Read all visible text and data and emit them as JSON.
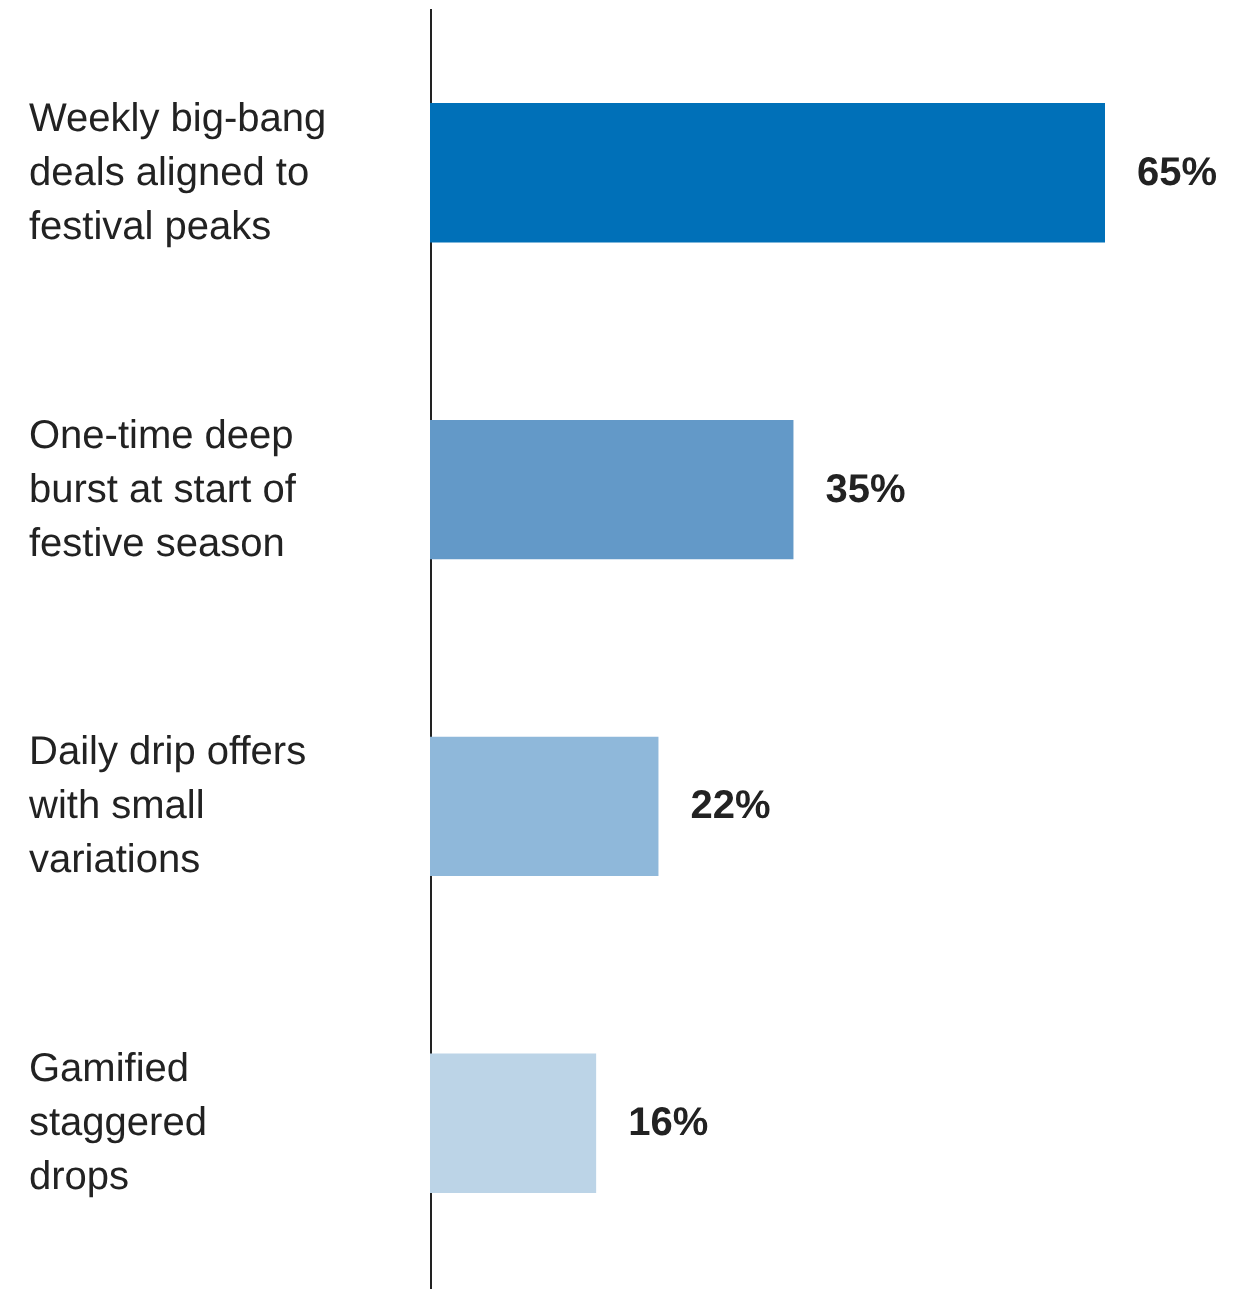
{
  "chart_data": {
    "type": "bar",
    "orientation": "horizontal",
    "categories": [
      "Weekly big-bang\ndeals aligned to\nfestival peaks",
      "One-time deep\nburst at start of\nfestive season",
      "Daily drip offers\nwith small\nvariations",
      "Gamified\nstaggered\ndrops"
    ],
    "values": [
      65,
      35,
      22,
      16
    ],
    "colors": [
      "#0070b8",
      "#6399c8",
      "#8fb8da",
      "#bcd4e7"
    ],
    "value_labels": [
      "65%",
      "35%",
      "22%",
      "16%"
    ]
  }
}
